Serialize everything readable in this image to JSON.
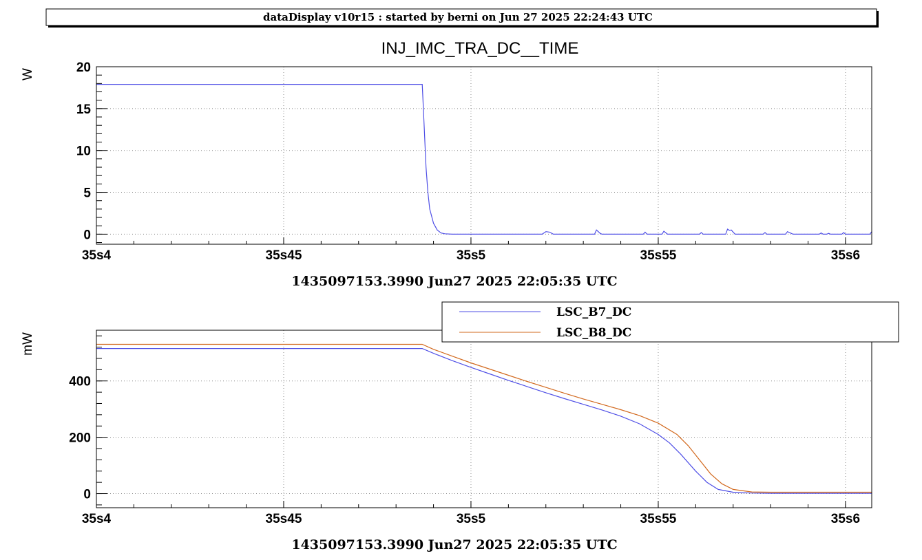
{
  "header": {
    "title": "dataDisplay v10r15 : started by berni on Jun 27 2025 22:24:43 UTC"
  },
  "colors": {
    "blue": "#4f4fe6",
    "orange": "#d2691e",
    "axis": "#000000",
    "grid": "#888888"
  },
  "chart_data": [
    {
      "type": "line",
      "title": "INJ_IMC_TRA_DC__TIME",
      "ylabel": "W",
      "xlabel": "1435097153.3990 Jun27 2025 22:05:35 UTC",
      "xlim": [
        4.0,
        6.07
      ],
      "ylim": [
        -1.2,
        20
      ],
      "grid": true,
      "x_tick_values": [
        4.0,
        4.5,
        5.0,
        5.5,
        6.0
      ],
      "x_tick_labels": [
        "35s4",
        "35s45",
        "35s5",
        "35s55",
        "35s6"
      ],
      "y_ticks": [
        0,
        5,
        10,
        15,
        20
      ],
      "series": [
        {
          "color": "#4f4fe6",
          "points": [
            [
              4.0,
              17.9
            ],
            [
              4.87,
              17.9
            ],
            [
              4.872,
              16.0
            ],
            [
              4.876,
              12.0
            ],
            [
              4.88,
              8.0
            ],
            [
              4.885,
              5.0
            ],
            [
              4.89,
              3.0
            ],
            [
              4.9,
              1.3
            ],
            [
              4.91,
              0.5
            ],
            [
              4.92,
              0.15
            ],
            [
              4.93,
              0.05
            ],
            [
              4.95,
              0.0
            ],
            [
              5.19,
              0.0
            ],
            [
              5.2,
              0.3
            ],
            [
              5.21,
              0.25
            ],
            [
              5.22,
              0.0
            ],
            [
              5.33,
              0.0
            ],
            [
              5.335,
              0.5
            ],
            [
              5.345,
              0.1
            ],
            [
              5.35,
              0.0
            ],
            [
              5.46,
              0.0
            ],
            [
              5.465,
              0.25
            ],
            [
              5.47,
              0.0
            ],
            [
              5.51,
              0.0
            ],
            [
              5.515,
              0.35
            ],
            [
              5.525,
              0.0
            ],
            [
              5.61,
              0.0
            ],
            [
              5.615,
              0.2
            ],
            [
              5.62,
              0.0
            ],
            [
              5.68,
              0.0
            ],
            [
              5.685,
              0.6
            ],
            [
              5.69,
              0.45
            ],
            [
              5.695,
              0.5
            ],
            [
              5.705,
              0.0
            ],
            [
              5.78,
              0.0
            ],
            [
              5.785,
              0.2
            ],
            [
              5.79,
              0.0
            ],
            [
              5.84,
              0.0
            ],
            [
              5.845,
              0.3
            ],
            [
              5.855,
              0.1
            ],
            [
              5.86,
              0.0
            ],
            [
              5.93,
              0.0
            ],
            [
              5.935,
              0.15
            ],
            [
              5.94,
              0.0
            ],
            [
              5.95,
              0.0
            ],
            [
              5.955,
              0.1
            ],
            [
              5.96,
              0.0
            ],
            [
              5.99,
              0.0
            ],
            [
              5.995,
              0.2
            ],
            [
              6.0,
              0.0
            ],
            [
              6.065,
              0.0
            ],
            [
              6.07,
              0.3
            ]
          ]
        }
      ]
    },
    {
      "type": "line",
      "title": "",
      "ylabel": "mW",
      "xlabel": "1435097153.3990 Jun27 2025 22:05:35 UTC",
      "xlim": [
        4.0,
        6.07
      ],
      "ylim": [
        -50,
        580
      ],
      "grid": true,
      "legend_position": "top-right",
      "x_tick_values": [
        4.0,
        4.5,
        5.0,
        5.5,
        6.0
      ],
      "x_tick_labels": [
        "35s4",
        "35s45",
        "35s5",
        "35s55",
        "35s6"
      ],
      "y_ticks": [
        0,
        200,
        400
      ],
      "series": [
        {
          "name": "LSC_B7_DC",
          "color": "#4f4fe6",
          "points": [
            [
              4.0,
              515
            ],
            [
              4.87,
              515
            ],
            [
              4.9,
              498
            ],
            [
              4.95,
              472
            ],
            [
              5.0,
              448
            ],
            [
              5.05,
              425
            ],
            [
              5.1,
              402
            ],
            [
              5.15,
              380
            ],
            [
              5.2,
              358
            ],
            [
              5.25,
              337
            ],
            [
              5.3,
              317
            ],
            [
              5.35,
              297
            ],
            [
              5.4,
              275
            ],
            [
              5.45,
              248
            ],
            [
              5.5,
              210
            ],
            [
              5.53,
              180
            ],
            [
              5.56,
              140
            ],
            [
              5.6,
              80
            ],
            [
              5.63,
              40
            ],
            [
              5.66,
              15
            ],
            [
              5.7,
              5
            ],
            [
              5.75,
              2
            ],
            [
              5.8,
              1
            ],
            [
              6.07,
              1
            ]
          ]
        },
        {
          "name": "LSC_B8_DC",
          "color": "#d2691e",
          "points": [
            [
              4.0,
              530
            ],
            [
              4.87,
              530
            ],
            [
              4.9,
              512
            ],
            [
              4.95,
              488
            ],
            [
              5.0,
              464
            ],
            [
              5.05,
              442
            ],
            [
              5.1,
              420
            ],
            [
              5.15,
              398
            ],
            [
              5.2,
              377
            ],
            [
              5.25,
              356
            ],
            [
              5.3,
              336
            ],
            [
              5.35,
              317
            ],
            [
              5.4,
              298
            ],
            [
              5.45,
              277
            ],
            [
              5.5,
              250
            ],
            [
              5.55,
              210
            ],
            [
              5.58,
              170
            ],
            [
              5.61,
              120
            ],
            [
              5.64,
              70
            ],
            [
              5.67,
              35
            ],
            [
              5.7,
              15
            ],
            [
              5.75,
              6
            ],
            [
              5.8,
              5
            ],
            [
              6.07,
              5
            ]
          ]
        }
      ]
    }
  ]
}
